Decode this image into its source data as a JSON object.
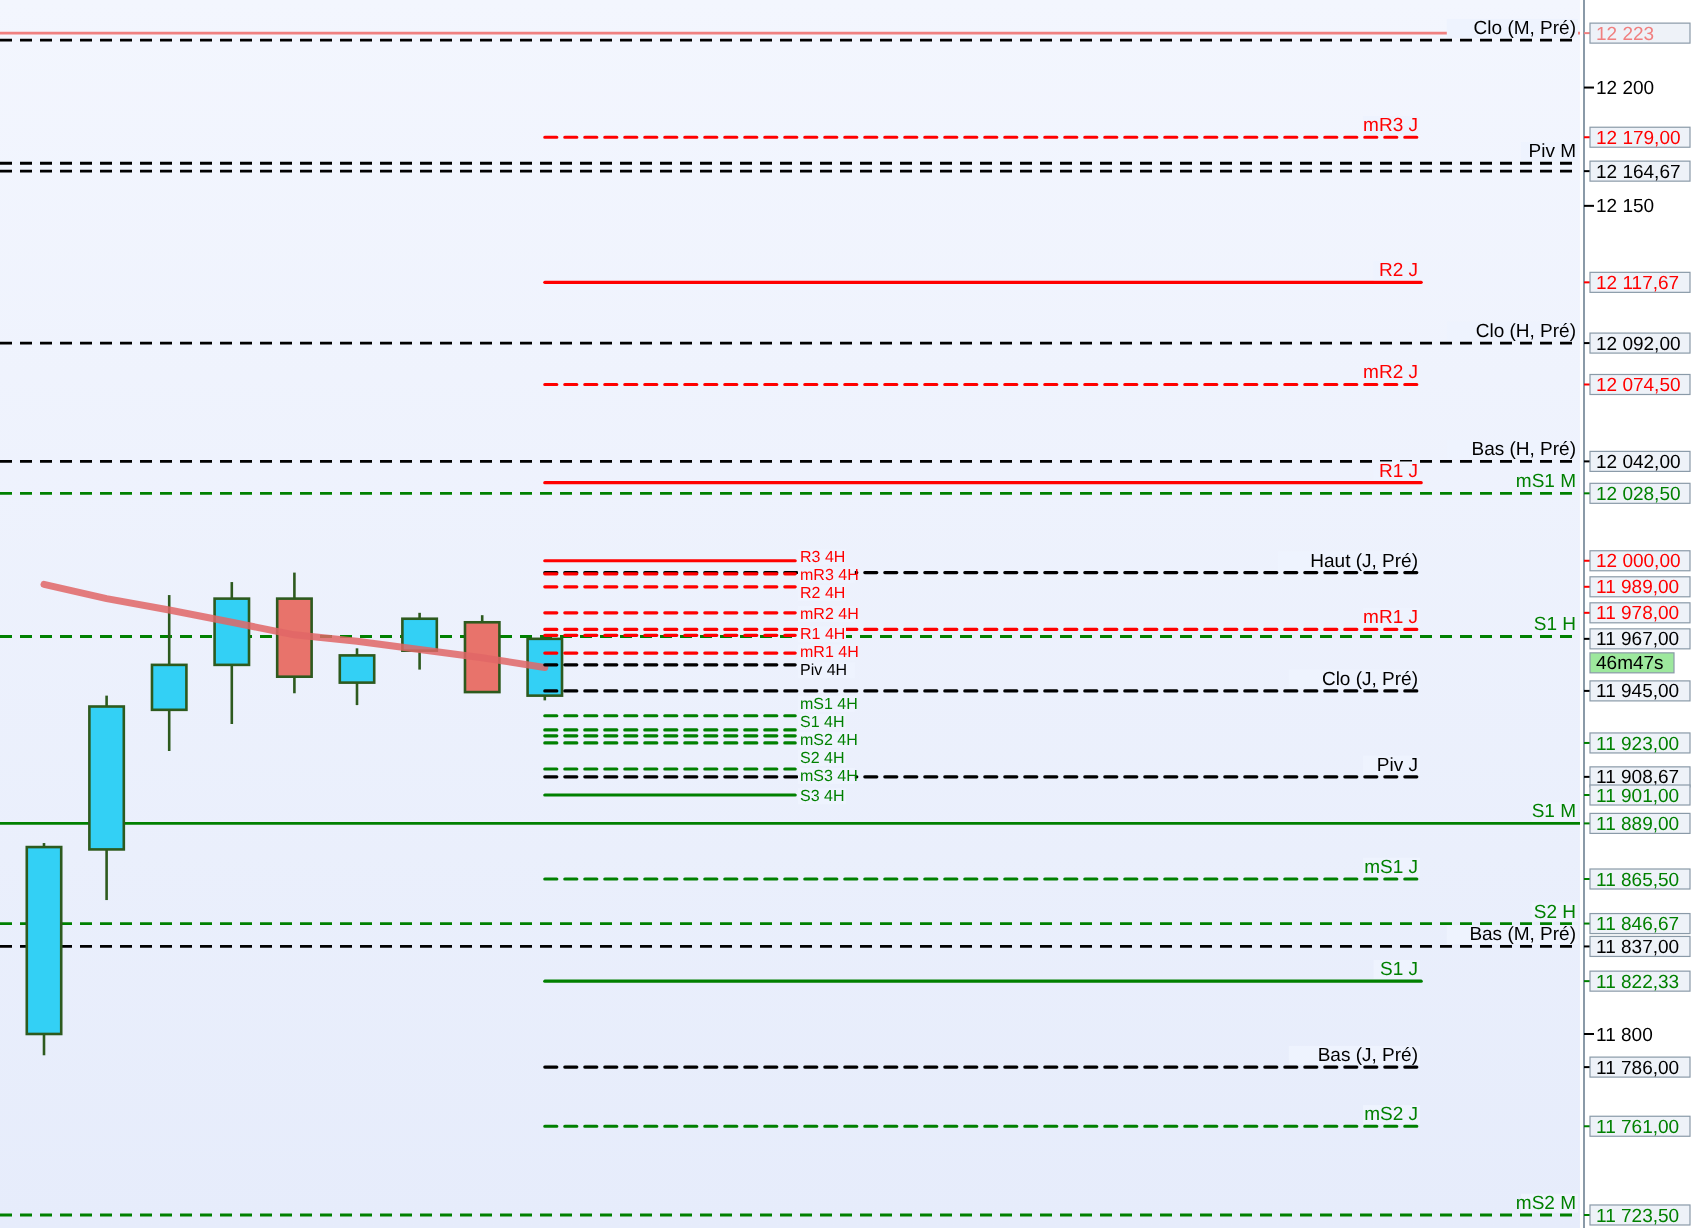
{
  "chart_data": {
    "type": "candlestick",
    "tick_labels": "y",
    "categories": [
      null,
      null,
      null,
      null,
      null,
      null,
      null,
      null,
      null,
      null,
      null,
      null,
      null,
      null,
      null,
      null,
      null,
      null,
      null,
      null,
      null,
      null,
      null,
      null,
      null
    ],
    "ohlc": [
      [
        11800,
        11880.7,
        11791,
        11879
      ],
      [
        11878,
        11943,
        11856.6,
        11938.4
      ],
      [
        11937,
        11985.5,
        11919.6,
        11956
      ],
      [
        11956,
        11991,
        11931,
        11984
      ],
      [
        11984,
        11995,
        11944,
        11951
      ],
      [
        11948.5,
        11963,
        11939,
        11960
      ],
      [
        11962,
        11978,
        11954,
        11975.5
      ],
      [
        11974,
        11977,
        11944.5,
        11944.5
      ],
      [
        11943,
        11967,
        11941,
        11967
      ],
      null,
      null,
      null,
      null,
      null,
      null,
      null,
      null,
      null,
      null,
      null,
      null,
      null,
      null,
      null,
      null
    ],
    "colors": [
      "#33d0f5",
      "#33d0f5",
      "#33d0f5",
      "#33d0f5",
      "#e8736b",
      "#33d0f5",
      "#33d0f5",
      "#e8736b",
      "#33d0f5",
      null,
      null,
      null,
      null,
      null,
      null,
      null,
      null,
      null,
      null,
      null,
      null,
      null,
      null,
      null,
      null
    ],
    "ylim": [
      11718,
      12237
    ],
    "yticks": [
      {
        "value": 12223,
        "label": "12 223"
      },
      {
        "value": 12200,
        "label": "12 200"
      },
      {
        "value": 12179,
        "label": "12 179,00"
      },
      {
        "value": 12164.67,
        "label": "12 164,67"
      },
      {
        "value": 12150,
        "label": "12 150"
      },
      {
        "value": 12117.67,
        "label": "12 117,67"
      },
      {
        "value": 12092,
        "label": "12 092,00"
      },
      {
        "value": 12074.5,
        "label": "12 074,50"
      },
      {
        "value": 12042,
        "label": "12 042,00"
      },
      {
        "value": 12028.5,
        "label": "12 028,50"
      },
      {
        "value": 12000,
        "label": "12 000,00"
      },
      {
        "value": 11989,
        "label": "11 989,00"
      },
      {
        "value": 11978,
        "label": "11 978,00"
      },
      {
        "value": 11967,
        "label": "11 967,00"
      },
      {
        "value": 11945,
        "label": "11 945,00"
      },
      {
        "value": 11923,
        "label": "11 923,00"
      },
      {
        "value": 11908.67,
        "label": "11 908,67"
      },
      {
        "value": 11901,
        "label": "11 901,00"
      },
      {
        "value": 11889,
        "label": "11 889,00"
      },
      {
        "value": 11865.5,
        "label": "11 865,50"
      },
      {
        "value": 11846.67,
        "label": "11 846,67"
      },
      {
        "value": 11837,
        "label": "11 837,00"
      },
      {
        "value": 11822.33,
        "label": "11 822,33"
      },
      {
        "value": 11800,
        "label": "11 800"
      },
      {
        "value": 11786,
        "label": "11 786,00"
      },
      {
        "value": 11761,
        "label": "11 761,00"
      },
      {
        "value": 11723.5,
        "label": "11 723,50"
      }
    ],
    "annotations": [
      "46m47s"
    ],
    "ref_lines": [
      {
        "axis": "y",
        "value": 12223,
        "color": "#f08080",
        "line_style": "solid"
      },
      {
        "axis": "y",
        "value": 12220,
        "label": "Clo (M, Pré)",
        "color": "#000000",
        "line_style": "dashed"
      },
      {
        "axis": "y",
        "value": 12168,
        "label": "Piv M",
        "color": "#000000",
        "line_style": "dashed"
      },
      {
        "axis": "y",
        "value": 12164.67,
        "color": "#000000",
        "line_style": "dashed"
      },
      {
        "axis": "y",
        "value": 12092,
        "label": "Clo (H, Pré)",
        "color": "#000000",
        "line_style": "dashed"
      },
      {
        "axis": "y",
        "value": 12042,
        "label": "Bas (H, Pré)",
        "color": "#000000",
        "line_style": "dashed"
      },
      {
        "axis": "y",
        "value": 12028.5,
        "label": "mS1 M",
        "color": "#008000",
        "line_style": "dashed"
      },
      {
        "axis": "y",
        "value": 11968,
        "label": "S1 H",
        "color": "#008000",
        "line_style": "dashed"
      },
      {
        "axis": "y",
        "value": 11889,
        "label": "S1 M",
        "color": "#008000",
        "line_style": "solid"
      },
      {
        "axis": "y",
        "value": 11846.67,
        "label": "S2 H",
        "color": "#008000",
        "line_style": "dashed"
      },
      {
        "axis": "y",
        "value": 11837,
        "label": "Bas (M, Pré)",
        "color": "#000000",
        "line_style": "dashed"
      },
      {
        "axis": "y",
        "value": 11723.5,
        "label": "mS2 M",
        "color": "#008000",
        "line_style": "dashed"
      }
    ],
    "series": [
      {
        "type": "line",
        "color": "#e06666",
        "line_style": "solid",
        "values": [
          11990,
          11984,
          11979.2,
          11974,
          11968.7,
          11966,
          11962.5,
          11959,
          11954.9,
          null,
          null,
          null,
          null,
          null,
          null,
          null,
          null,
          null,
          null,
          null,
          null,
          null,
          null,
          null,
          null
        ]
      },
      {
        "type": "line",
        "name": "mR3 J",
        "color": "#ff0000",
        "line_style": "dashed",
        "values": [
          null,
          null,
          null,
          null,
          null,
          null,
          null,
          null,
          12179,
          12179,
          12179,
          12179,
          12179,
          12179,
          12179,
          12179,
          12179,
          12179,
          12179,
          12179,
          12179,
          12179,
          12179,
          null,
          null
        ]
      },
      {
        "type": "line",
        "name": "R2 J",
        "color": "#ff0000",
        "line_style": "solid",
        "values": [
          null,
          null,
          null,
          null,
          null,
          null,
          null,
          null,
          12117.67,
          12117.67,
          12117.67,
          12117.67,
          12117.67,
          12117.67,
          12117.67,
          12117.67,
          12117.67,
          12117.67,
          12117.67,
          12117.67,
          12117.67,
          12117.67,
          12117.67,
          null,
          null
        ]
      },
      {
        "type": "line",
        "name": "mR2 J",
        "color": "#ff0000",
        "line_style": "dashed",
        "values": [
          null,
          null,
          null,
          null,
          null,
          null,
          null,
          null,
          12074.5,
          12074.5,
          12074.5,
          12074.5,
          12074.5,
          12074.5,
          12074.5,
          12074.5,
          12074.5,
          12074.5,
          12074.5,
          12074.5,
          12074.5,
          12074.5,
          12074.5,
          null,
          null
        ]
      },
      {
        "type": "line",
        "name": "R1 J",
        "color": "#ff0000",
        "line_style": "solid",
        "values": [
          null,
          null,
          null,
          null,
          null,
          null,
          null,
          null,
          12033,
          12033,
          12033,
          12033,
          12033,
          12033,
          12033,
          12033,
          12033,
          12033,
          12033,
          12033,
          12033,
          12033,
          12033,
          null,
          null
        ]
      },
      {
        "type": "line",
        "name": "Haut (J, Pré)",
        "color": "#000000",
        "line_style": "dashed",
        "values": [
          null,
          null,
          null,
          null,
          null,
          null,
          null,
          null,
          11995,
          11995,
          11995,
          11995,
          11995,
          11995,
          11995,
          11995,
          11995,
          11995,
          11995,
          11995,
          11995,
          11995,
          11995,
          null,
          null
        ]
      },
      {
        "type": "line",
        "name": "mR1 J",
        "color": "#ff0000",
        "line_style": "dashed",
        "values": [
          null,
          null,
          null,
          null,
          null,
          null,
          null,
          null,
          11971,
          11971,
          11971,
          11971,
          11971,
          11971,
          11971,
          11971,
          11971,
          11971,
          11971,
          11971,
          11971,
          11971,
          11971,
          null,
          null
        ]
      },
      {
        "type": "line",
        "name": "Clo (J, Pré)",
        "color": "#000000",
        "line_style": "dashed",
        "values": [
          null,
          null,
          null,
          null,
          null,
          null,
          null,
          null,
          11945,
          11945,
          11945,
          11945,
          11945,
          11945,
          11945,
          11945,
          11945,
          11945,
          11945,
          11945,
          11945,
          11945,
          11945,
          null,
          null
        ]
      },
      {
        "type": "line",
        "name": "Piv J",
        "color": "#000000",
        "line_style": "dashed",
        "values": [
          null,
          null,
          null,
          null,
          null,
          null,
          null,
          null,
          11908.67,
          11908.67,
          11908.67,
          11908.67,
          11908.67,
          11908.67,
          11908.67,
          11908.67,
          11908.67,
          11908.67,
          11908.67,
          11908.67,
          11908.67,
          11908.67,
          11908.67,
          null,
          null
        ]
      },
      {
        "type": "line",
        "name": "mS1 J",
        "color": "#008000",
        "line_style": "dashed",
        "values": [
          null,
          null,
          null,
          null,
          null,
          null,
          null,
          null,
          11865.5,
          11865.5,
          11865.5,
          11865.5,
          11865.5,
          11865.5,
          11865.5,
          11865.5,
          11865.5,
          11865.5,
          11865.5,
          11865.5,
          11865.5,
          11865.5,
          11865.5,
          null,
          null
        ]
      },
      {
        "type": "line",
        "name": "S1 J",
        "color": "#008000",
        "line_style": "solid",
        "values": [
          null,
          null,
          null,
          null,
          null,
          null,
          null,
          null,
          11822.33,
          11822.33,
          11822.33,
          11822.33,
          11822.33,
          11822.33,
          11822.33,
          11822.33,
          11822.33,
          11822.33,
          11822.33,
          11822.33,
          11822.33,
          11822.33,
          11822.33,
          null,
          null
        ]
      },
      {
        "type": "line",
        "name": "Bas (J, Pré)",
        "color": "#000000",
        "line_style": "dashed",
        "values": [
          null,
          null,
          null,
          null,
          null,
          null,
          null,
          null,
          11786,
          11786,
          11786,
          11786,
          11786,
          11786,
          11786,
          11786,
          11786,
          11786,
          11786,
          11786,
          11786,
          11786,
          11786,
          null,
          null
        ]
      },
      {
        "type": "line",
        "name": "mS2 J",
        "color": "#008000",
        "line_style": "dashed",
        "values": [
          null,
          null,
          null,
          null,
          null,
          null,
          null,
          null,
          11761,
          11761,
          11761,
          11761,
          11761,
          11761,
          11761,
          11761,
          11761,
          11761,
          11761,
          11761,
          11761,
          11761,
          11761,
          null,
          null
        ]
      },
      {
        "type": "line",
        "name": "R3 4H",
        "color": "#ff0000",
        "line_style": "solid",
        "values": [
          null,
          null,
          null,
          null,
          null,
          null,
          null,
          null,
          12000,
          12000,
          12000,
          12000,
          12000,
          null,
          null,
          null,
          null,
          null,
          null,
          null,
          null,
          null,
          null,
          null,
          null
        ]
      },
      {
        "type": "line",
        "name": "mR3 4H",
        "color": "#ff0000",
        "line_style": "dashed",
        "values": [
          null,
          null,
          null,
          null,
          null,
          null,
          null,
          null,
          11994.5,
          11994.5,
          11994.5,
          11994.5,
          11994.5,
          null,
          null,
          null,
          null,
          null,
          null,
          null,
          null,
          null,
          null,
          null,
          null
        ]
      },
      {
        "type": "line",
        "name": "R2 4H",
        "color": "#ff0000",
        "line_style": "dashed",
        "values": [
          null,
          null,
          null,
          null,
          null,
          null,
          null,
          null,
          11989,
          11989,
          11989,
          11989,
          11989,
          null,
          null,
          null,
          null,
          null,
          null,
          null,
          null,
          null,
          null,
          null,
          null
        ]
      },
      {
        "type": "line",
        "name": "mR2 4H",
        "color": "#ff0000",
        "line_style": "dashed",
        "values": [
          null,
          null,
          null,
          null,
          null,
          null,
          null,
          null,
          11978,
          11978,
          11978,
          11978,
          11978,
          null,
          null,
          null,
          null,
          null,
          null,
          null,
          null,
          null,
          null,
          null,
          null
        ]
      },
      {
        "type": "line",
        "name": "R1 4H",
        "color": "#ff0000",
        "line_style": "dashed",
        "values": [
          null,
          null,
          null,
          null,
          null,
          null,
          null,
          null,
          11968.5,
          11968.5,
          11968.5,
          11968.5,
          11968.5,
          null,
          null,
          null,
          null,
          null,
          null,
          null,
          null,
          null,
          null,
          null,
          null
        ]
      },
      {
        "type": "line",
        "name": "mR1 4H",
        "color": "#ff0000",
        "line_style": "dashed",
        "values": [
          null,
          null,
          null,
          null,
          null,
          null,
          null,
          null,
          11961,
          11961,
          11961,
          11961,
          11961,
          null,
          null,
          null,
          null,
          null,
          null,
          null,
          null,
          null,
          null,
          null,
          null
        ]
      },
      {
        "type": "line",
        "name": "Piv 4H",
        "color": "#000000",
        "line_style": "dashed",
        "values": [
          null,
          null,
          null,
          null,
          null,
          null,
          null,
          null,
          11956,
          11956,
          11956,
          11956,
          11956,
          null,
          null,
          null,
          null,
          null,
          null,
          null,
          null,
          null,
          null,
          null,
          null
        ]
      },
      {
        "type": "line",
        "name": "mS1 4H",
        "color": "#008000",
        "line_style": "dashed",
        "values": [
          null,
          null,
          null,
          null,
          null,
          null,
          null,
          null,
          11934.5,
          11934.5,
          11934.5,
          11934.5,
          11934.5,
          null,
          null,
          null,
          null,
          null,
          null,
          null,
          null,
          null,
          null,
          null,
          null
        ]
      },
      {
        "type": "line",
        "name": "S1 4H",
        "color": "#008000",
        "line_style": "dashed",
        "values": [
          null,
          null,
          null,
          null,
          null,
          null,
          null,
          null,
          11928.5,
          11928.5,
          11928.5,
          11928.5,
          11928.5,
          null,
          null,
          null,
          null,
          null,
          null,
          null,
          null,
          null,
          null,
          null,
          null
        ]
      },
      {
        "type": "line",
        "name": "mS2 4H",
        "color": "#008000",
        "line_style": "dashed",
        "values": [
          null,
          null,
          null,
          null,
          null,
          null,
          null,
          null,
          11926,
          11926,
          11926,
          11926,
          11926,
          null,
          null,
          null,
          null,
          null,
          null,
          null,
          null,
          null,
          null,
          null,
          null
        ]
      },
      {
        "type": "line",
        "name": "S2 4H",
        "color": "#008000",
        "line_style": "dashed",
        "values": [
          null,
          null,
          null,
          null,
          null,
          null,
          null,
          null,
          11923,
          11923,
          11923,
          11923,
          11923,
          null,
          null,
          null,
          null,
          null,
          null,
          null,
          null,
          null,
          null,
          null,
          null
        ]
      },
      {
        "type": "line",
        "name": "mS3 4H",
        "color": "#008000",
        "line_style": "dashed",
        "values": [
          null,
          null,
          null,
          null,
          null,
          null,
          null,
          null,
          11912,
          11912,
          11912,
          11912,
          11912,
          null,
          null,
          null,
          null,
          null,
          null,
          null,
          null,
          null,
          null,
          null,
          null
        ]
      },
      {
        "type": "line",
        "name": "S3 4H",
        "color": "#008000",
        "line_style": "solid",
        "values": [
          null,
          null,
          null,
          null,
          null,
          null,
          null,
          null,
          11901,
          11901,
          11901,
          11901,
          11901,
          null,
          null,
          null,
          null,
          null,
          null,
          null,
          null,
          null,
          null,
          null,
          null
        ]
      }
    ]
  }
}
